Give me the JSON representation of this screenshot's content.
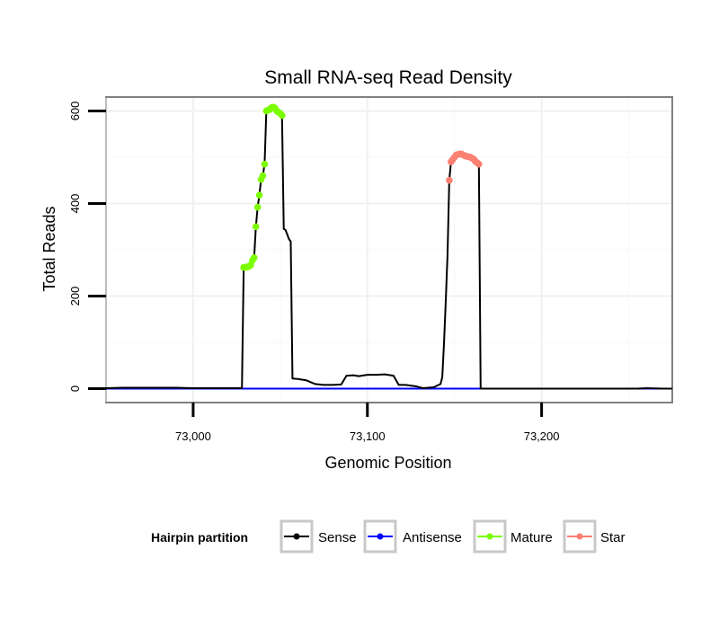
{
  "chart_data": {
    "type": "line",
    "title": "Small RNA-seq Read Density",
    "xlabel": "Genomic Position",
    "ylabel": "Total Reads",
    "xlim": [
      72950,
      73275
    ],
    "ylim": [
      -30,
      630
    ],
    "x_ticks": [
      73000,
      73100,
      73200
    ],
    "x_tick_labels": [
      "73,000",
      "73,100",
      "73,200"
    ],
    "y_ticks": [
      0,
      200,
      400,
      600
    ],
    "y_tick_labels": [
      "0",
      "200",
      "400",
      "600"
    ],
    "grid": true,
    "legend": {
      "title": "Hairpin partition",
      "position": "bottom",
      "entries": [
        "Sense",
        "Antisense",
        "Mature",
        "Star"
      ]
    },
    "colors": {
      "Sense": "#000000",
      "Antisense": "#0000ff",
      "Mature": "#7cfc00",
      "Star": "#fa8072"
    },
    "series": [
      {
        "name": "Sense",
        "points": [
          [
            72950,
            1
          ],
          [
            72960,
            2
          ],
          [
            72970,
            2
          ],
          [
            72980,
            2
          ],
          [
            72990,
            2
          ],
          [
            73000,
            1
          ],
          [
            73010,
            1
          ],
          [
            73020,
            1
          ],
          [
            73028,
            1
          ],
          [
            73029,
            262
          ],
          [
            73030,
            262
          ],
          [
            73031,
            263
          ],
          [
            73032,
            264
          ],
          [
            73033,
            267
          ],
          [
            73034,
            277
          ],
          [
            73035,
            283
          ],
          [
            73036,
            350
          ],
          [
            73037,
            392
          ],
          [
            73038,
            418
          ],
          [
            73039,
            452
          ],
          [
            73040,
            460
          ],
          [
            73041,
            485
          ],
          [
            73042,
            600
          ],
          [
            73043,
            602
          ],
          [
            73044,
            603
          ],
          [
            73045,
            607
          ],
          [
            73046,
            608
          ],
          [
            73047,
            606
          ],
          [
            73048,
            600
          ],
          [
            73049,
            597
          ],
          [
            73050,
            595
          ],
          [
            73051,
            590
          ],
          [
            73052,
            345
          ],
          [
            73053,
            343
          ],
          [
            73054,
            333
          ],
          [
            73055,
            323
          ],
          [
            73056,
            318
          ],
          [
            73057,
            22
          ],
          [
            73060,
            21
          ],
          [
            73065,
            18
          ],
          [
            73070,
            10
          ],
          [
            73075,
            8
          ],
          [
            73080,
            8
          ],
          [
            73085,
            9
          ],
          [
            73088,
            28
          ],
          [
            73092,
            29
          ],
          [
            73095,
            27
          ],
          [
            73100,
            30
          ],
          [
            73105,
            30
          ],
          [
            73110,
            31
          ],
          [
            73115,
            28
          ],
          [
            73118,
            8
          ],
          [
            73122,
            8
          ],
          [
            73128,
            5
          ],
          [
            73132,
            1
          ],
          [
            73138,
            3
          ],
          [
            73142,
            10
          ],
          [
            73143,
            25
          ],
          [
            73144,
            100
          ],
          [
            73145,
            190
          ],
          [
            73146,
            290
          ],
          [
            73147,
            450
          ],
          [
            73148,
            490
          ],
          [
            73149,
            495
          ],
          [
            73150,
            500
          ],
          [
            73151,
            505
          ],
          [
            73152,
            506
          ],
          [
            73153,
            507
          ],
          [
            73154,
            507
          ],
          [
            73155,
            505
          ],
          [
            73156,
            503
          ],
          [
            73157,
            502
          ],
          [
            73158,
            501
          ],
          [
            73159,
            500
          ],
          [
            73160,
            498
          ],
          [
            73161,
            496
          ],
          [
            73162,
            491
          ],
          [
            73163,
            488
          ],
          [
            73164,
            485
          ],
          [
            73165,
            0
          ],
          [
            73170,
            0
          ],
          [
            73180,
            0
          ],
          [
            73200,
            0
          ],
          [
            73220,
            0
          ],
          [
            73240,
            0
          ],
          [
            73255,
            0
          ],
          [
            73260,
            1
          ],
          [
            73270,
            0
          ],
          [
            73275,
            0
          ]
        ]
      },
      {
        "name": "Antisense",
        "points": [
          [
            72950,
            0
          ],
          [
            73275,
            0
          ]
        ]
      },
      {
        "name": "Mature",
        "points": [
          [
            73029,
            262
          ],
          [
            73030,
            262
          ],
          [
            73031,
            263
          ],
          [
            73032,
            264
          ],
          [
            73033,
            267
          ],
          [
            73034,
            277
          ],
          [
            73035,
            283
          ],
          [
            73036,
            350
          ],
          [
            73037,
            392
          ],
          [
            73038,
            418
          ],
          [
            73039,
            452
          ],
          [
            73040,
            460
          ],
          [
            73041,
            485
          ],
          [
            73042,
            600
          ],
          [
            73043,
            602
          ],
          [
            73044,
            603
          ],
          [
            73045,
            607
          ],
          [
            73046,
            608
          ],
          [
            73047,
            606
          ],
          [
            73048,
            600
          ],
          [
            73049,
            597
          ],
          [
            73050,
            595
          ],
          [
            73051,
            590
          ]
        ]
      },
      {
        "name": "Star",
        "points": [
          [
            73147,
            450
          ],
          [
            73148,
            490
          ],
          [
            73149,
            495
          ],
          [
            73150,
            500
          ],
          [
            73151,
            505
          ],
          [
            73152,
            506
          ],
          [
            73153,
            507
          ],
          [
            73154,
            507
          ],
          [
            73155,
            505
          ],
          [
            73156,
            503
          ],
          [
            73157,
            502
          ],
          [
            73158,
            501
          ],
          [
            73159,
            500
          ],
          [
            73160,
            498
          ],
          [
            73161,
            496
          ],
          [
            73162,
            491
          ],
          [
            73163,
            488
          ],
          [
            73164,
            485
          ]
        ]
      }
    ]
  }
}
